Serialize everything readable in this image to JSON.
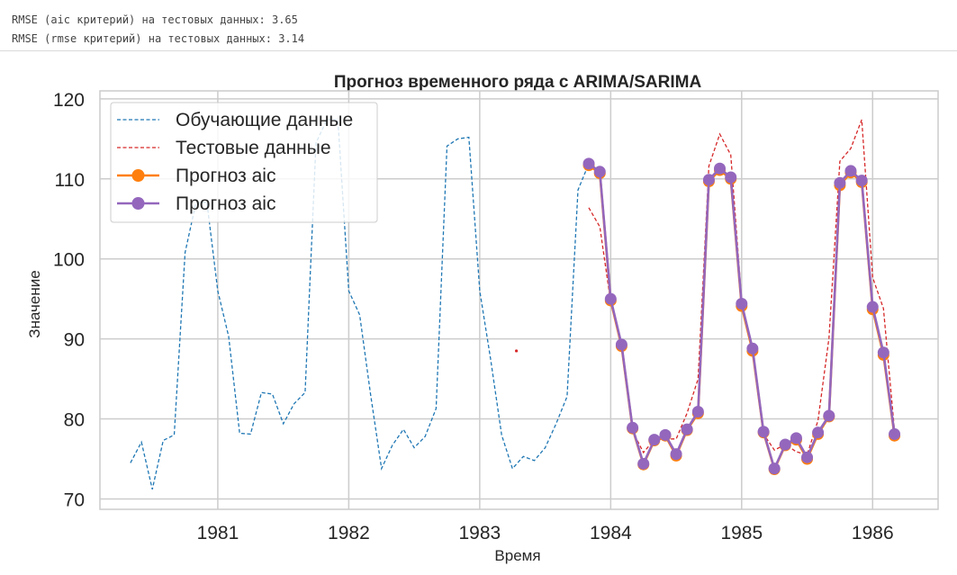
{
  "output": {
    "lines": [
      "RMSE (aic критерий) на тестовых данных: 3.65",
      "RMSE (rmse критерий) на тестовых данных: 3.14"
    ]
  },
  "chart_data": {
    "type": "line",
    "title": "Прогноз временного ряда с ARIMA/SARIMA",
    "xlabel": "Время",
    "ylabel": "Значение",
    "x_unit": "year",
    "xlim": [
      1980.1,
      1986.5
    ],
    "ylim": [
      68.7,
      121.0
    ],
    "x_ticks": [
      1981,
      1982,
      1983,
      1984,
      1985,
      1986
    ],
    "y_ticks": [
      70,
      80,
      90,
      100,
      110,
      120
    ],
    "grid": true,
    "legend_position": "top-left",
    "colors": {
      "train": "#1f77b4",
      "test": "#d62728",
      "forecast_aic": "#ff7f0e",
      "forecast_rmse": "#9467bd"
    },
    "series": [
      {
        "name": "Обучающие данные",
        "style": "dashed",
        "x": [
          1980.333,
          1980.417,
          1980.5,
          1980.583,
          1980.667,
          1980.75,
          1980.833,
          1980.917,
          1981.0,
          1981.083,
          1981.167,
          1981.25,
          1981.333,
          1981.417,
          1981.5,
          1981.583,
          1981.667,
          1981.75,
          1981.833,
          1981.917,
          1982.0,
          1982.083,
          1982.167,
          1982.25,
          1982.333,
          1982.417,
          1982.5,
          1982.583,
          1982.667,
          1982.75,
          1982.833,
          1982.917,
          1983.0,
          1983.083,
          1983.167,
          1983.25,
          1983.333,
          1983.417,
          1983.5,
          1983.583,
          1983.667,
          1983.75,
          1983.833
        ],
        "values": [
          74.5,
          77.1,
          71.2,
          77.3,
          78.0,
          100.8,
          107.0,
          107.1,
          96.0,
          90.3,
          78.2,
          78.1,
          83.3,
          83.1,
          79.4,
          81.9,
          83.3,
          114.5,
          117.4,
          117.4,
          96.0,
          93.0,
          83.0,
          73.8,
          76.7,
          78.7,
          76.4,
          77.8,
          81.3,
          114.1,
          115.0,
          115.2,
          96.0,
          87.5,
          78.0,
          73.8,
          75.3,
          74.8,
          76.4,
          79.4,
          82.8,
          108.6,
          111.9
        ]
      },
      {
        "name": "Тестовые данные",
        "style": "dashed",
        "x": [
          1983.833,
          1983.917,
          1984.0,
          1984.083,
          1984.167,
          1984.25,
          1984.333,
          1984.417,
          1984.5,
          1984.583,
          1984.667,
          1984.75,
          1984.833,
          1984.917,
          1985.0,
          1985.083,
          1985.167,
          1985.25,
          1985.333,
          1985.417,
          1985.5,
          1985.583,
          1985.667,
          1985.75,
          1985.833,
          1985.917,
          1986.0,
          1986.083,
          1986.167
        ],
        "values": [
          106.4,
          104.0,
          94.6,
          89.0,
          78.5,
          75.8,
          77.4,
          77.5,
          77.5,
          80.7,
          85.0,
          111.6,
          115.6,
          113.0,
          94.8,
          88.4,
          78.1,
          76.1,
          76.8,
          75.9,
          75.5,
          79.8,
          90.1,
          112.2,
          113.8,
          117.4,
          97.7,
          93.8,
          78.5
        ]
      },
      {
        "name": "Прогноз aic",
        "style": "solid-markers",
        "x": [
          1983.833,
          1983.917,
          1984.0,
          1984.083,
          1984.167,
          1984.25,
          1984.333,
          1984.417,
          1984.5,
          1984.583,
          1984.667,
          1984.75,
          1984.833,
          1984.917,
          1985.0,
          1985.083,
          1985.167,
          1985.25,
          1985.333,
          1985.417,
          1985.5,
          1985.583,
          1985.667,
          1985.75,
          1985.833,
          1985.917,
          1986.0,
          1986.083,
          1986.167
        ],
        "values": [
          111.7,
          110.7,
          94.8,
          89.1,
          78.8,
          74.3,
          77.3,
          77.9,
          75.4,
          78.6,
          80.7,
          109.7,
          111.1,
          110.0,
          94.1,
          88.5,
          78.3,
          73.7,
          76.7,
          77.4,
          75.0,
          78.1,
          80.3,
          109.2,
          110.8,
          109.6,
          93.7,
          88.0,
          77.9
        ]
      },
      {
        "name": "Прогноз aic",
        "style": "solid-markers",
        "x": [
          1983.833,
          1983.917,
          1984.0,
          1984.083,
          1984.167,
          1984.25,
          1984.333,
          1984.417,
          1984.5,
          1984.583,
          1984.667,
          1984.75,
          1984.833,
          1984.917,
          1985.0,
          1985.083,
          1985.167,
          1985.25,
          1985.333,
          1985.417,
          1985.5,
          1985.583,
          1985.667,
          1985.75,
          1985.833,
          1985.917,
          1986.0,
          1986.083,
          1986.167
        ],
        "values": [
          111.9,
          110.9,
          95.0,
          89.3,
          78.9,
          74.4,
          77.4,
          78.0,
          75.6,
          78.7,
          80.9,
          109.9,
          111.3,
          110.2,
          94.4,
          88.8,
          78.4,
          73.8,
          76.8,
          77.6,
          75.2,
          78.3,
          80.4,
          109.5,
          111.0,
          109.8,
          94.0,
          88.3,
          78.1
        ]
      }
    ],
    "annotations": [
      {
        "type": "point",
        "x": 1983.28,
        "y": 88.5,
        "color": "#d62728"
      }
    ]
  }
}
